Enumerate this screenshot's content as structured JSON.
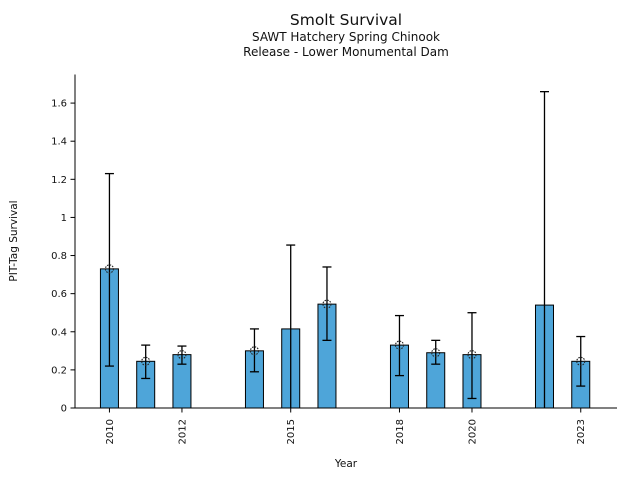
{
  "figure": {
    "title": "Smolt Survival",
    "subtitle_line1": "SAWT Hatchery Spring Chinook",
    "subtitle_line2": "Release - Lower Monumental Dam"
  },
  "chart_data": {
    "type": "bar",
    "title": "Smolt Survival",
    "subtitle": [
      "SAWT Hatchery Spring Chinook",
      "Release - Lower Monumental Dam"
    ],
    "xlabel": "Year",
    "ylabel": "PIT-Tag Survival",
    "xlim": [
      2009.05,
      2024
    ],
    "ylim": [
      0,
      1.75
    ],
    "grid": false,
    "legend": "none",
    "bar_color": "#4ea5d9",
    "bar_edge_color": "#000000",
    "error_bar_color": "#000000",
    "marker_style": "open-circle",
    "x_ticks": [
      {
        "value": 2010,
        "label": "2010"
      },
      {
        "value": 2012,
        "label": "2012"
      },
      {
        "value": 2015,
        "label": "2015"
      },
      {
        "value": 2018,
        "label": "2018"
      },
      {
        "value": 2020,
        "label": "2020"
      },
      {
        "value": 2023,
        "label": "2023"
      }
    ],
    "y_ticks": [
      {
        "value": 0,
        "label": "0"
      },
      {
        "value": 0.2,
        "label": "0.2"
      },
      {
        "value": 0.4,
        "label": "0.4"
      },
      {
        "value": 0.6,
        "label": "0.6"
      },
      {
        "value": 0.8,
        "label": "0.8"
      },
      {
        "value": 1,
        "label": "1"
      },
      {
        "value": 1.2,
        "label": "1.2"
      },
      {
        "value": 1.4,
        "label": "1.4"
      },
      {
        "value": 1.6,
        "label": "1.6"
      }
    ],
    "bars": [
      {
        "year": 2010,
        "value": 0.73,
        "ci_low": 0.22,
        "ci_high": 1.23,
        "marker": true,
        "low_cap": true
      },
      {
        "year": 2011,
        "value": 0.245,
        "ci_low": 0.155,
        "ci_high": 0.33,
        "marker": true,
        "low_cap": true
      },
      {
        "year": 2012,
        "value": 0.28,
        "ci_low": 0.23,
        "ci_high": 0.325,
        "marker": true,
        "low_cap": true
      },
      {
        "year": 2014,
        "value": 0.3,
        "ci_low": 0.19,
        "ci_high": 0.415,
        "marker": true,
        "low_cap": true
      },
      {
        "year": 2015,
        "value": 0.415,
        "ci_low": 0.0,
        "ci_high": 0.855,
        "marker": false,
        "low_cap": false
      },
      {
        "year": 2016,
        "value": 0.545,
        "ci_low": 0.355,
        "ci_high": 0.74,
        "marker": true,
        "low_cap": true
      },
      {
        "year": 2018,
        "value": 0.33,
        "ci_low": 0.17,
        "ci_high": 0.485,
        "marker": true,
        "low_cap": true
      },
      {
        "year": 2019,
        "value": 0.29,
        "ci_low": 0.23,
        "ci_high": 0.355,
        "marker": true,
        "low_cap": true
      },
      {
        "year": 2020,
        "value": 0.28,
        "ci_low": 0.05,
        "ci_high": 0.5,
        "marker": true,
        "low_cap": true
      },
      {
        "year": 2022,
        "value": 0.54,
        "ci_low": 0.0,
        "ci_high": 1.66,
        "marker": false,
        "low_cap": false
      },
      {
        "year": 2023,
        "value": 0.245,
        "ci_low": 0.115,
        "ci_high": 0.375,
        "marker": true,
        "low_cap": true
      }
    ]
  }
}
